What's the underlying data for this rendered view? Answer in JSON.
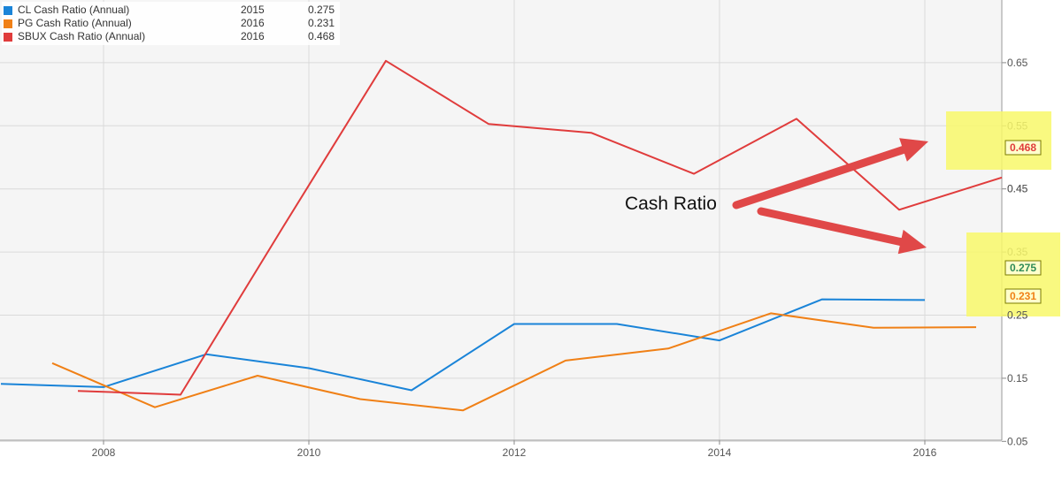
{
  "chart_data": {
    "type": "line",
    "title": "",
    "xlabel": "",
    "ylabel": "",
    "x_ticks": [
      "2008",
      "2010",
      "2012",
      "2014",
      "2016"
    ],
    "y_ticks": [
      "0.05",
      "0.15",
      "0.25",
      "0.35",
      "0.45",
      "0.55",
      "0.65"
    ],
    "xlim": [
      2007.0,
      2016.75
    ],
    "ylim": [
      0.0,
      0.7
    ],
    "grid": true,
    "legend_position": "top-left",
    "series": [
      {
        "name": "CL Cash Ratio (Annual)",
        "color": "#1a84d8",
        "legend_year": "2015",
        "legend_value": "0.275",
        "end_label": "0.275",
        "end_label_color": "#2e8b57",
        "x": [
          2007.0,
          2008.0,
          2009.0,
          2010.0,
          2011.0,
          2012.0,
          2013.0,
          2014.0,
          2015.0,
          2016.0
        ],
        "y": [
          0.141,
          0.136,
          0.188,
          0.166,
          0.131,
          0.236,
          0.236,
          0.21,
          0.275,
          0.274
        ]
      },
      {
        "name": "PG Cash Ratio (Annual)",
        "color": "#f08016",
        "legend_year": "2016",
        "legend_value": "0.231",
        "end_label": "0.231",
        "end_label_color": "#f08016",
        "x": [
          2007.5,
          2008.5,
          2009.5,
          2010.5,
          2011.5,
          2012.5,
          2013.5,
          2014.5,
          2015.5,
          2016.5
        ],
        "y": [
          0.174,
          0.104,
          0.154,
          0.117,
          0.099,
          0.178,
          0.197,
          0.253,
          0.23,
          0.231
        ]
      },
      {
        "name": "SBUX Cash Ratio (Annual)",
        "color": "#e03c3c",
        "legend_year": "2016",
        "legend_value": "0.468",
        "end_label": "0.468",
        "end_label_color": "#e03c3c",
        "x": [
          2007.75,
          2008.75,
          2009.75,
          2010.75,
          2011.75,
          2012.75,
          2013.75,
          2014.75,
          2015.75,
          2016.75
        ],
        "y": [
          0.13,
          0.124,
          0.39,
          0.653,
          0.553,
          0.539,
          0.474,
          0.561,
          0.417,
          0.468
        ]
      }
    ],
    "annotation": {
      "text": "Cash Ratio",
      "arrow_color": "#e04848",
      "highlight_color": "#f8f86a"
    }
  }
}
